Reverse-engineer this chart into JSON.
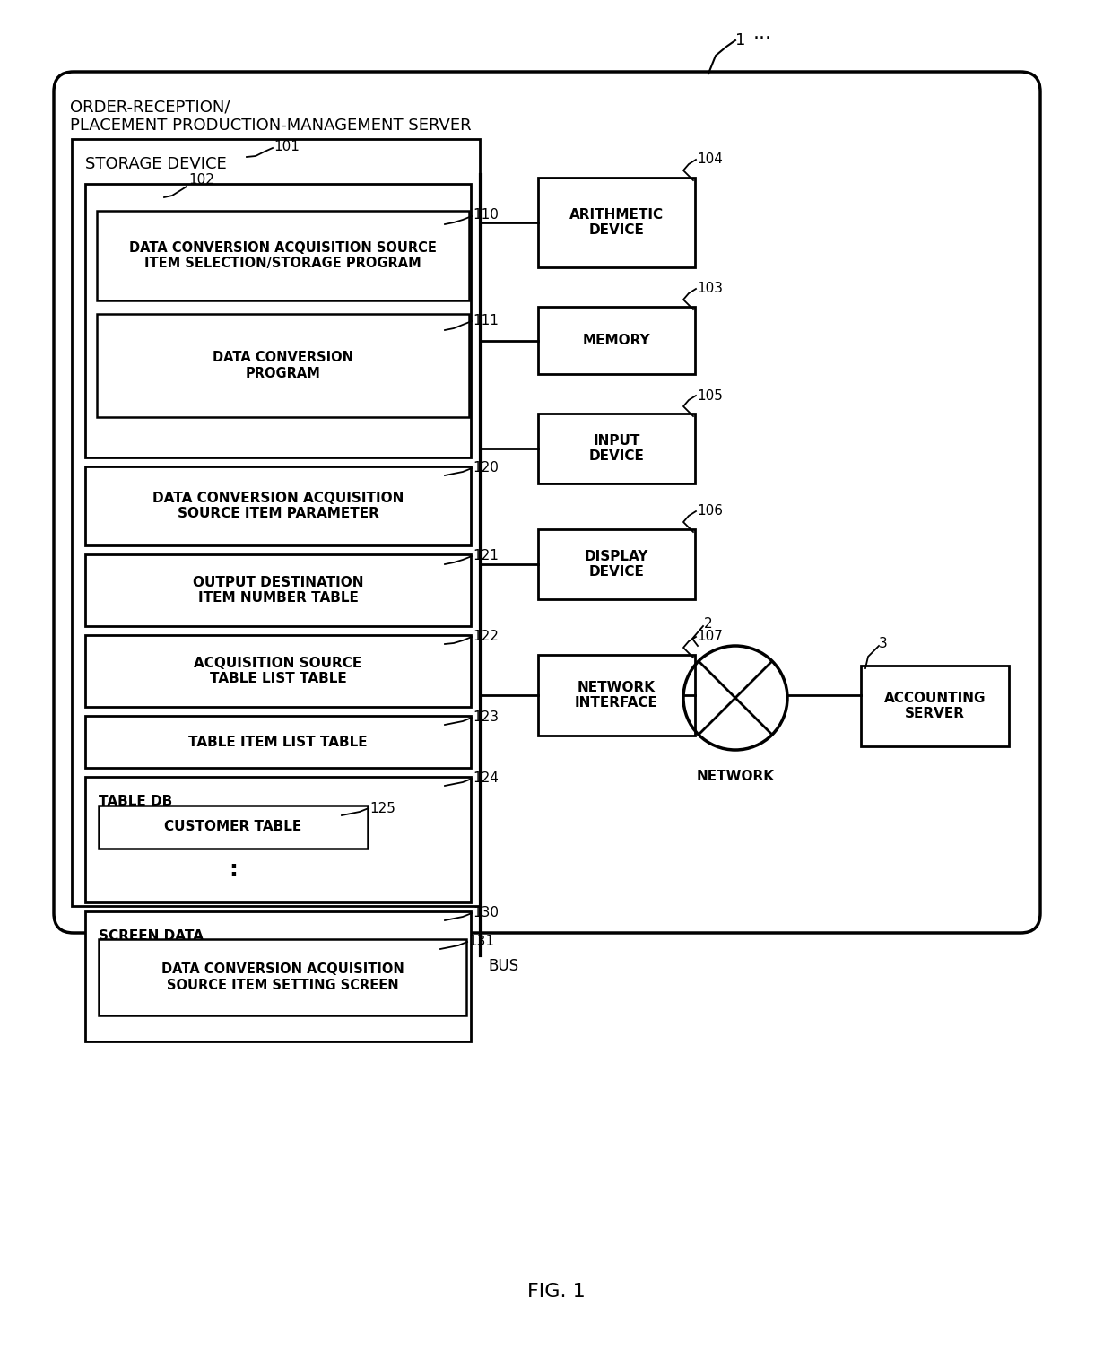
{
  "bg_color": "#ffffff",
  "fig_label": "FIG. 1",
  "ref1": "1",
  "server_label": "ORDER-RECEPTION/\nPLACEMENT PRODUCTION-MANAGEMENT SERVER",
  "storage_label": "STORAGE DEVICE",
  "ref101": "101",
  "arith_label": "ARITHMETIC\nDEVICE",
  "ref104": "104",
  "memory_label": "MEMORY",
  "ref103": "103",
  "input_label": "INPUT\nDEVICE",
  "ref105": "105",
  "display_label": "DISPLAY\nDEVICE",
  "ref106": "106",
  "network_if_label": "NETWORK\nINTERFACE",
  "ref107": "107",
  "network_label": "NETWORK",
  "ref2": "2",
  "accounting_label": "ACCOUNTING\nSERVER",
  "ref3": "3",
  "bus_label": "BUS",
  "ref102": "102",
  "ref110": "110",
  "box110_label": "DATA CONVERSION ACQUISITION SOURCE\nITEM SELECTION/STORAGE PROGRAM",
  "ref111": "111",
  "box111_label": "DATA CONVERSION\nPROGRAM",
  "ref120": "120",
  "box120_label": "DATA CONVERSION ACQUISITION\nSOURCE ITEM PARAMETER",
  "ref121": "121",
  "box121_label": "OUTPUT DESTINATION\nITEM NUMBER TABLE",
  "ref122": "122",
  "box122_label": "ACQUISITION SOURCE\nTABLE LIST TABLE",
  "ref123": "123",
  "box123_label": "TABLE ITEM LIST TABLE",
  "ref124": "124",
  "tabledb_label": "TABLE DB",
  "ref125": "125",
  "box125_label": "CUSTOMER TABLE",
  "ref130": "130",
  "box130_label": "SCREEN DATA",
  "ref131": "131",
  "box131_label": "DATA CONVERSION ACQUISITION\nSOURCE ITEM SETTING SCREEN",
  "dots": "⋯"
}
